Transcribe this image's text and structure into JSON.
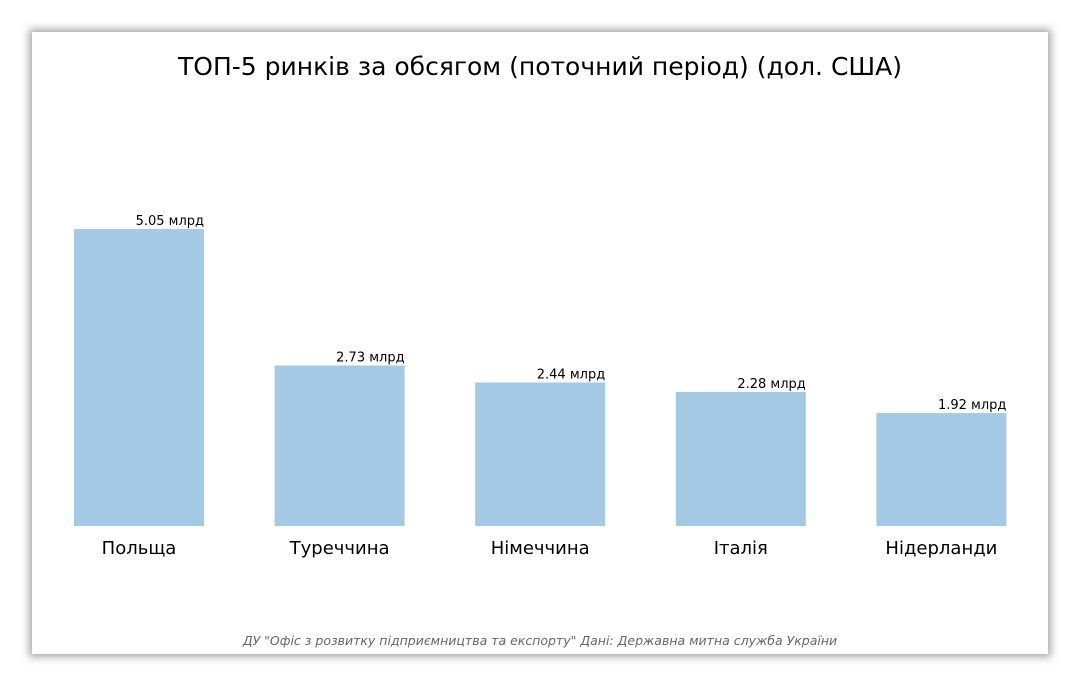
{
  "chart_data": {
    "type": "bar",
    "title": "ТОП-5 ринків за обсягом (поточний період) (дол. США)",
    "categories": [
      "Польща",
      "Туреччина",
      "Німеччина",
      "Італія",
      "Нідерланди"
    ],
    "values": [
      5.05,
      2.73,
      2.44,
      2.28,
      1.92
    ],
    "value_labels": [
      "5.05 млрд",
      "2.73 млрд",
      "2.44 млрд",
      "2.28 млрд",
      "1.92 млрд"
    ],
    "xlabel": "",
    "ylabel": "",
    "ylim": [
      0,
      7.2
    ],
    "grid": false,
    "bar_color": "#a3c9e4"
  },
  "source_text": "ДУ \"Офіс з розвитку підприємництва та експорту\" Дані: Державна митна служба України"
}
